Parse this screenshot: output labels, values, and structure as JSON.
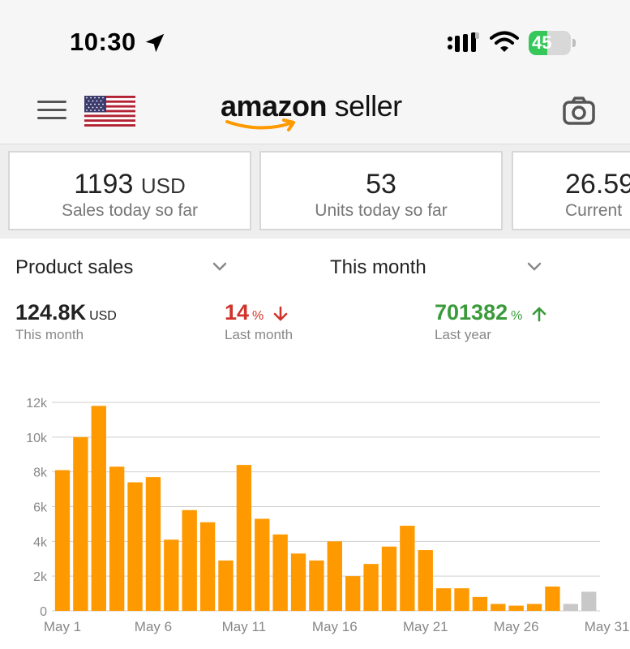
{
  "status_bar": {
    "time": "10:30",
    "battery_level": "45",
    "icons": [
      "location-arrow-icon",
      "signal-icon",
      "wifi-icon",
      "battery-charging-icon"
    ]
  },
  "header": {
    "logo_brand": "amazon",
    "logo_product": "seller",
    "icons": [
      "menu-icon",
      "us-flag-icon",
      "camera-icon"
    ]
  },
  "cards": [
    {
      "value": "1193",
      "unit": "USD",
      "label": "Sales today so far"
    },
    {
      "value": "53",
      "unit": "",
      "label": "Units today so far"
    },
    {
      "value": "26.59",
      "unit": "",
      "label": "Current"
    }
  ],
  "selectors": {
    "metric": "Product sales",
    "period": "This month"
  },
  "metrics": {
    "current": {
      "value": "124.8K",
      "unit": "USD",
      "label": "This month"
    },
    "last_month": {
      "value": "14",
      "unit": "%",
      "label": "Last month",
      "trend": "down",
      "color": "#d0342c"
    },
    "last_year": {
      "value": "701382",
      "unit": "%",
      "label": "Last year",
      "trend": "up",
      "color": "#3a9a3a"
    }
  },
  "colors": {
    "bar": "#ff9900",
    "bar_projected": "#c8c8c8",
    "grid": "#cfcfcf"
  },
  "chart_data": {
    "type": "bar",
    "ylim": [
      0,
      12000
    ],
    "y_ticks": [
      {
        "value": 0,
        "label": "0"
      },
      {
        "value": 2000,
        "label": "2k"
      },
      {
        "value": 4000,
        "label": "4k"
      },
      {
        "value": 6000,
        "label": "6k"
      },
      {
        "value": 8000,
        "label": "8k"
      },
      {
        "value": 10000,
        "label": "10k"
      },
      {
        "value": 12000,
        "label": "12k"
      }
    ],
    "x_ticks": [
      {
        "day": 1,
        "label": "May 1"
      },
      {
        "day": 6,
        "label": "May 6"
      },
      {
        "day": 11,
        "label": "May 11"
      },
      {
        "day": 16,
        "label": "May 16"
      },
      {
        "day": 21,
        "label": "May 21"
      },
      {
        "day": 26,
        "label": "May 26"
      },
      {
        "day": 31,
        "label": "May 31"
      }
    ],
    "days": [
      1,
      2,
      3,
      4,
      5,
      6,
      7,
      8,
      9,
      10,
      11,
      12,
      13,
      14,
      15,
      16,
      17,
      18,
      19,
      20,
      21,
      22,
      23,
      24,
      25,
      26,
      27,
      28,
      29,
      30,
      31
    ],
    "values": [
      8100,
      10000,
      11800,
      8300,
      7400,
      7700,
      4100,
      5800,
      5100,
      2900,
      8400,
      5300,
      4400,
      3300,
      2900,
      4000,
      2000,
      2700,
      3700,
      4900,
      3500,
      1300,
      1300,
      800,
      400,
      300,
      400,
      1400,
      400,
      1100,
      0
    ],
    "projected": [
      false,
      false,
      false,
      false,
      false,
      false,
      false,
      false,
      false,
      false,
      false,
      false,
      false,
      false,
      false,
      false,
      false,
      false,
      false,
      false,
      false,
      false,
      false,
      false,
      false,
      false,
      false,
      false,
      true,
      true,
      false
    ]
  }
}
